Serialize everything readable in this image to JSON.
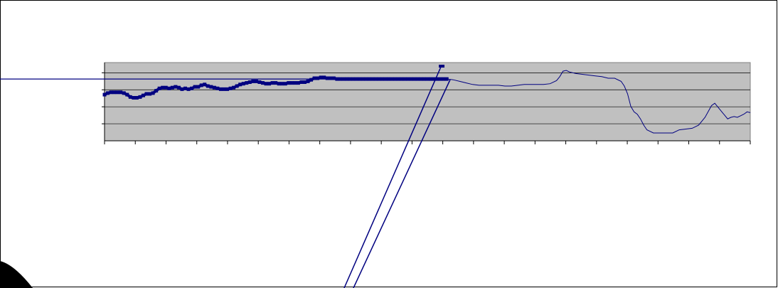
{
  "chart_data": {
    "type": "line",
    "title": "",
    "xlabel": "",
    "ylabel": "",
    "grid": true,
    "tick_labels_visible": false,
    "n_x_ticks": 21,
    "n_y_gridlines": 4,
    "ylim": [
      0,
      100
    ],
    "xlim": [
      0,
      100
    ],
    "series": [
      {
        "style": "thick-markers",
        "color": "#000080",
        "x": [
          0,
          0.5,
          1,
          1.5,
          2,
          2.5,
          3,
          3.5,
          4,
          4.5,
          5,
          5.5,
          6,
          6.5,
          7,
          7.5,
          8,
          8.5,
          9,
          9.5,
          10,
          10.5,
          11,
          11.5,
          12,
          12.5,
          13,
          13.5,
          14,
          14.5,
          15,
          15.5,
          16,
          16.5,
          17,
          17.5,
          18,
          18.5,
          19,
          19.5,
          20,
          20.5,
          21,
          21.5,
          22,
          22.5,
          23,
          23.5,
          24,
          24.5,
          25,
          25.5,
          26,
          26.5,
          27,
          27.5,
          28,
          28.5,
          29,
          29.5,
          30,
          30.5,
          31,
          31.5,
          32,
          32.5,
          33,
          33.5,
          34,
          34.5,
          35,
          35.5,
          36,
          36.5,
          37,
          37.5,
          38,
          38.5,
          39,
          39.5,
          40,
          40.5,
          41,
          41.5,
          42,
          42.5,
          43,
          43.5,
          44,
          44.5,
          45,
          45.5,
          46,
          46.5,
          47,
          47.5,
          48,
          48.5,
          49,
          49.5,
          50,
          50.5,
          51,
          51.5,
          52,
          52.5,
          53
        ],
        "y": [
          59,
          61,
          62,
          62,
          62,
          62,
          61,
          59,
          56,
          55,
          55,
          56,
          58,
          60,
          60,
          61,
          64,
          67,
          68,
          68,
          67,
          68,
          69,
          68,
          66,
          67,
          66,
          67,
          69,
          69,
          71,
          72,
          70,
          69,
          68,
          67,
          66,
          66,
          66,
          67,
          68,
          70,
          72,
          73,
          74,
          75,
          76,
          76,
          75,
          74,
          73,
          73,
          74,
          74,
          73,
          73,
          73,
          74,
          74,
          74,
          74,
          75,
          75,
          76,
          78,
          80,
          80,
          81,
          81,
          80,
          80,
          80,
          79,
          79,
          79,
          79,
          79,
          79,
          79,
          79,
          79,
          79,
          79,
          79,
          79,
          79,
          79,
          79,
          79,
          79,
          79,
          79,
          79,
          79,
          79,
          79,
          79,
          79,
          79,
          79,
          79,
          79,
          79,
          79,
          79,
          79,
          79
        ]
      },
      {
        "style": "thin",
        "color": "#000080",
        "x": [
          53,
          54,
          55,
          56,
          57,
          58,
          59,
          60,
          61,
          62,
          63,
          64,
          65,
          66,
          67,
          68,
          69,
          70,
          70.5,
          71,
          71.5,
          72,
          73,
          74,
          75,
          76,
          77,
          78,
          79,
          80,
          80.5,
          81,
          81.5,
          82,
          82.5,
          83,
          83.5,
          84,
          84.5,
          85,
          85.5,
          86,
          87,
          88,
          89,
          90,
          91,
          92,
          93,
          94,
          94.5,
          95,
          95.5,
          96,
          96.5,
          97,
          97.5,
          98,
          98.5,
          99,
          99.5,
          100
        ],
        "y": [
          79,
          78,
          76,
          74,
          72,
          71,
          71,
          71,
          71,
          70,
          70,
          71,
          72,
          72,
          72,
          72,
          73,
          77,
          82,
          89,
          90,
          88,
          86,
          85,
          84,
          83,
          82,
          80,
          80,
          76,
          70,
          60,
          44,
          37,
          34,
          28,
          20,
          14,
          12,
          10,
          10,
          10,
          10,
          10,
          14,
          15,
          16,
          20,
          30,
          45,
          48,
          43,
          38,
          33,
          28,
          30,
          31,
          30,
          32,
          34,
          37,
          36
        ]
      }
    ],
    "callout_lines": true
  }
}
